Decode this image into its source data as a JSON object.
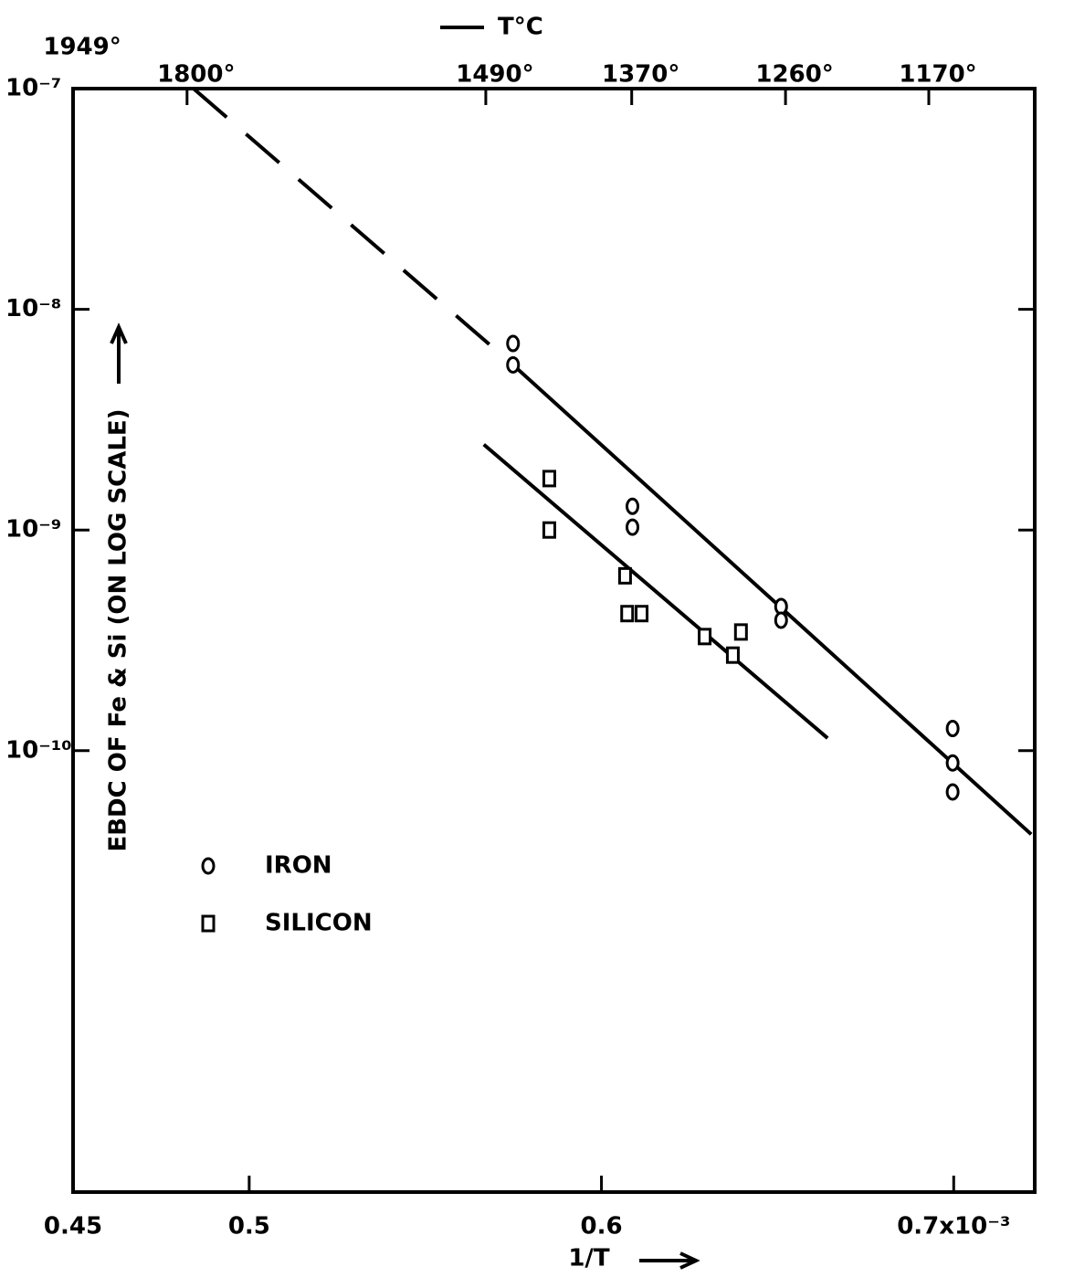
{
  "chart_data": {
    "type": "scatter",
    "x_label": "1/T",
    "y_label": "EBDC OF Fe & Si (ON LOG SCALE)",
    "x2_label": "T°C",
    "xlim": [
      0.45,
      0.723
    ],
    "xticks": [
      0.45,
      0.5,
      0.6,
      {
        "value": 0.7,
        "label": "0.7x10⁻³"
      }
    ],
    "ylim": [
      1e-12,
      1e-07
    ],
    "log_y": true,
    "yticks": [
      {
        "value": 1e-07,
        "label": "10⁻⁷"
      },
      {
        "value": 1e-08,
        "label": "10⁻⁸"
      },
      {
        "value": 1e-09,
        "label": "10⁻⁹"
      },
      {
        "value": 1e-10,
        "label": "10⁻¹⁰"
      }
    ],
    "x2ticks": [
      {
        "value": 1949,
        "label": "1949°"
      },
      {
        "value": 1800,
        "label": "1800°"
      },
      {
        "value": 1490,
        "label": "1490°"
      },
      {
        "value": 1370,
        "label": "1370°"
      },
      {
        "value": 1260,
        "label": "1260°"
      },
      {
        "value": 1170,
        "label": "1170°"
      }
    ],
    "legend": "left",
    "series": [
      {
        "name": "IRON",
        "marker": "circle",
        "color": "#000000",
        "x": [
          0.5749,
          0.5749,
          0.6088,
          0.6088,
          0.651,
          0.651,
          0.6997,
          0.6997,
          0.6997
        ],
        "values": [
          7e-09,
          5.6e-09,
          1.28e-09,
          1.03e-09,
          4.5e-10,
          3.9e-10,
          1.26e-10,
          8.8e-11,
          6.5e-11
        ]
      },
      {
        "name": "SILICON",
        "marker": "square",
        "color": "#000000",
        "x": [
          0.5852,
          0.5852,
          0.6067,
          0.6073,
          0.6114,
          0.6293,
          0.6396,
          0.6373
        ],
        "values": [
          1.71e-09,
          1e-09,
          6.2e-10,
          4.18e-10,
          4.18e-10,
          3.29e-10,
          3.45e-10,
          2.71e-10
        ]
      }
    ],
    "fits": [
      {
        "style": "dashed",
        "x": [
          0.4842,
          0.5749
        ],
        "y": [
          1e-07,
          5.6e-09
        ]
      },
      {
        "style": "solid",
        "x": [
          0.5749,
          0.722
        ],
        "y": [
          5.6e-09,
          4.18e-11
        ]
      },
      {
        "style": "solid",
        "x": [
          0.5666,
          0.6642
        ],
        "y": [
          2.44e-09,
          1.14e-10
        ]
      }
    ]
  }
}
